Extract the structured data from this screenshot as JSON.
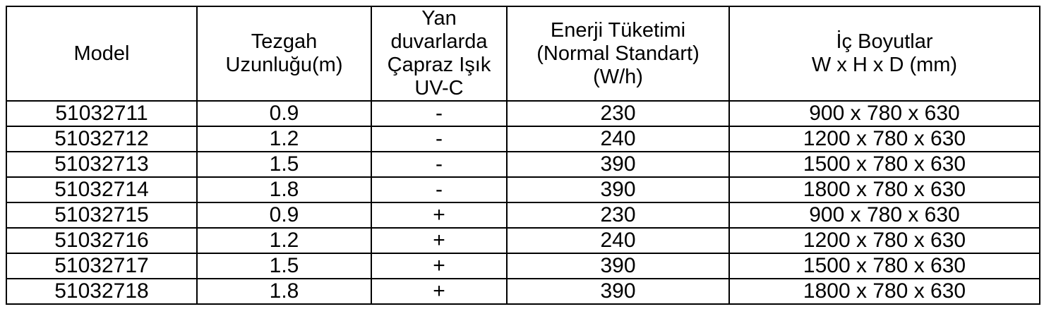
{
  "table": {
    "headers": [
      {
        "id": "model",
        "label": "Model"
      },
      {
        "id": "tezgah-uzunlugu",
        "label": "Tezgah\nUzunluğu(m)"
      },
      {
        "id": "capraz-isik-uvc",
        "label": "Yan\nduvarlarda\nÇapraz Işık\nUV-C"
      },
      {
        "id": "enerji-tuketimi",
        "label": "Enerji Tüketimi\n(Normal Standart)\n(W/h)"
      },
      {
        "id": "ic-boyutlar",
        "label": "İç Boyutlar\nW x H x D (mm)"
      }
    ],
    "rows": [
      [
        "51032711",
        "0.9",
        "-",
        "230",
        "900 x 780 x 630"
      ],
      [
        "51032712",
        "1.2",
        "-",
        "240",
        "1200 x 780 x 630"
      ],
      [
        "51032713",
        "1.5",
        "-",
        "390",
        "1500 x 780 x 630"
      ],
      [
        "51032714",
        "1.8",
        "-",
        "390",
        "1800 x 780 x 630"
      ],
      [
        "51032715",
        "0.9",
        "+",
        "230",
        "900 x 780 x 630"
      ],
      [
        "51032716",
        "1.2",
        "+",
        "240",
        "1200 x 780 x 630"
      ],
      [
        "51032717",
        "1.5",
        "+",
        "390",
        "1500 x 780 x 630"
      ],
      [
        "51032718",
        "1.8",
        "+",
        "390",
        "1800 x 780 x 630"
      ]
    ],
    "colors": {
      "border": "#000000",
      "text": "#000000",
      "background": "#ffffff"
    }
  }
}
